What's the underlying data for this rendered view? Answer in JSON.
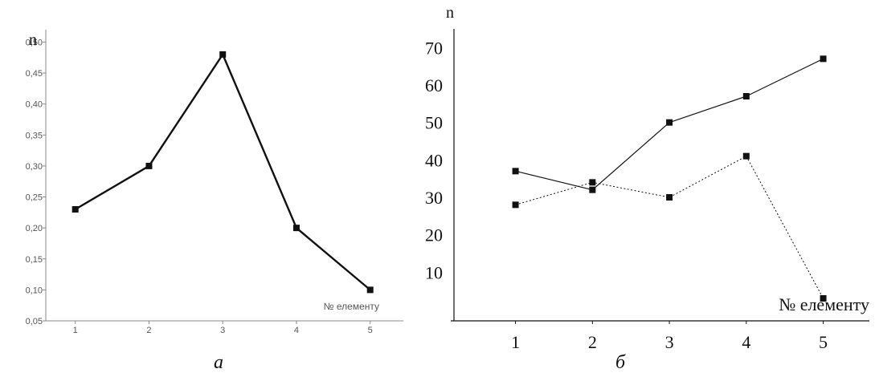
{
  "chart_data": [
    {
      "type": "line",
      "panel_label": "а",
      "ylabel": "n",
      "xlabel": "№ елементу",
      "x": [
        1,
        2,
        3,
        4,
        5
      ],
      "x_tick_labels": [
        "1",
        "2",
        "3",
        "4",
        "5"
      ],
      "y_tick_values": [
        0.05,
        0.1,
        0.15,
        0.2,
        0.25,
        0.3,
        0.35,
        0.4,
        0.45,
        0.5
      ],
      "y_tick_labels": [
        "0,05",
        "0,10",
        "0,15",
        "0,20",
        "0,25",
        "0,30",
        "0,35",
        "0,40",
        "0,45",
        "0,50"
      ],
      "ylim": [
        0.05,
        0.52
      ],
      "xlim": [
        0.6,
        5.45
      ],
      "grid": false,
      "series": [
        {
          "values": [
            0.23,
            0.3,
            0.48,
            0.2,
            0.1
          ],
          "line_style": "solid",
          "color": "#111111"
        }
      ]
    },
    {
      "type": "line",
      "panel_label": "б",
      "ylabel": "n",
      "xlabel": "№ елементу",
      "x": [
        1,
        2,
        3,
        4,
        5
      ],
      "x_tick_labels": [
        "1",
        "2",
        "3",
        "4",
        "5"
      ],
      "y_tick_values": [
        10,
        20,
        30,
        40,
        50,
        60,
        70
      ],
      "y_tick_labels": [
        "10",
        "20",
        "30",
        "40",
        "50",
        "60",
        "70"
      ],
      "ylim": [
        -3,
        75
      ],
      "xlim": [
        0.2,
        5.6
      ],
      "grid": false,
      "series": [
        {
          "values": [
            37,
            32,
            50,
            57,
            67
          ],
          "line_style": "solid",
          "color": "#111111"
        },
        {
          "values": [
            28,
            34,
            30,
            41,
            3
          ],
          "line_style": "dotted",
          "color": "#111111"
        }
      ]
    }
  ]
}
